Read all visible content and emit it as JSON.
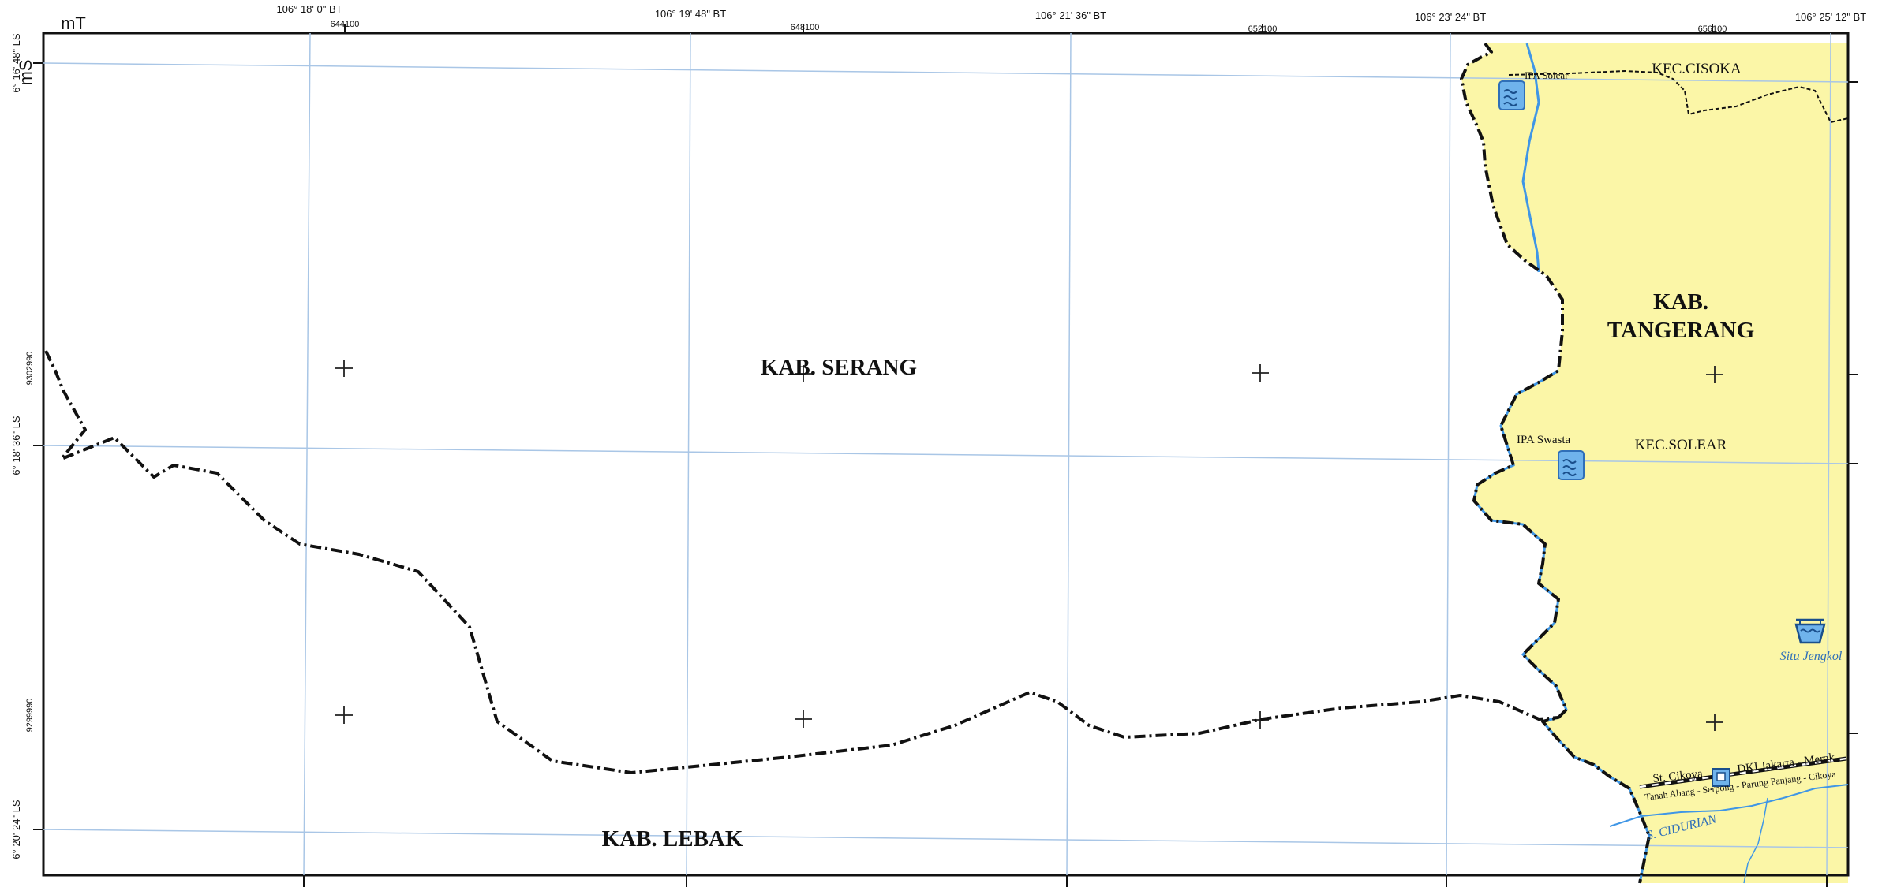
{
  "map": {
    "units": {
      "easting": "mT",
      "northing": "mS"
    },
    "longitude_labels": [
      "106° 18' 0\" BT",
      "106° 19' 48\" BT",
      "106° 21' 36\" BT",
      "106° 23' 24\" BT",
      "106° 25' 12\" BT"
    ],
    "easting_labels": [
      "644100",
      "648100",
      "652100",
      "656100"
    ],
    "latitude_labels": [
      "6° 16' 48\" LS",
      "6° 18' 36\" LS",
      "6° 20' 24\" LS"
    ],
    "northing_labels": [
      "9302990",
      "9299990"
    ],
    "regions": {
      "serang": "KAB. SERANG",
      "tangerang_line1": "KAB.",
      "tangerang_line2": "TANGERANG",
      "lebak": "KAB. LEBAK",
      "cisoka": "KEC.CISOKA",
      "solear": "KEC.SOLEAR"
    },
    "features": {
      "ipa_solear": "IPA Solear",
      "ipa_swasta": "IPA Swasta",
      "situ_jengkol": "Situ Jengkol",
      "river": "S. CIDURIAN",
      "station": "St. Cikoya",
      "rail_line1": "DKI Jakarta - Merak",
      "rail_line2": "Tanah Abang - Serpong - Parung Panjang - Cikoya"
    },
    "colors": {
      "tangerang_fill": "#fbf6a7",
      "grid": "#a9c6e6",
      "water": "#3f96e6",
      "boundary": "#111111"
    }
  }
}
